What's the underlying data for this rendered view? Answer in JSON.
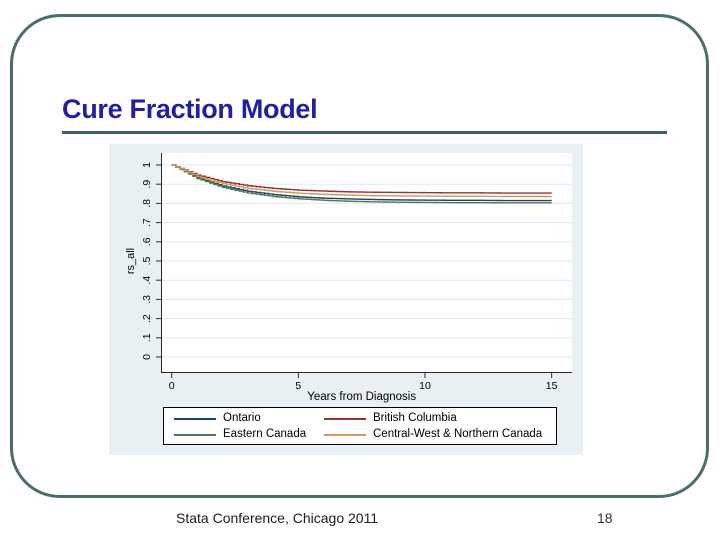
{
  "slide": {
    "title": "Cure Fraction Model",
    "footer": "Stata Conference, Chicago 2011",
    "page_number": "18"
  },
  "theme": {
    "slide_border_color": "#4b6f67",
    "title_color": "#21219f",
    "underline_color": "#3f6161",
    "chart_background": "#e9f0f4",
    "plot_background": "#ffffff",
    "grid_color": "#e1eaf0",
    "axis_color": "#2a2a2a",
    "legend_border": "#000000",
    "legend_background": "#ffffff"
  },
  "chart_data": {
    "type": "line",
    "subtype": "survival-step-curves",
    "title": "",
    "xlabel": "Years from Diagnosis",
    "ylabel": "rs_all",
    "xlim": [
      0,
      15
    ],
    "ylim": [
      0,
      1
    ],
    "xticks": [
      0,
      5,
      10,
      15
    ],
    "xtick_labels": [
      "0",
      "5",
      "10",
      "15"
    ],
    "yticks": [
      0,
      0.1,
      0.2,
      0.3,
      0.4,
      0.5,
      0.6,
      0.7,
      0.8,
      0.9,
      1
    ],
    "ytick_labels": [
      "0",
      ".1",
      ".2",
      ".3",
      ".4",
      ".5",
      ".6",
      ".7",
      ".8",
      ".9",
      "1"
    ],
    "ytick_rotation": -90,
    "grid": "horizontal",
    "legend_position": "bottom",
    "x": [
      0,
      1,
      2,
      3,
      4,
      5,
      6,
      7,
      8,
      9,
      10,
      11,
      12,
      13,
      14,
      15
    ],
    "series": [
      {
        "name": "Ontario",
        "color": "#1a476f",
        "values": [
          1.0,
          0.933,
          0.89,
          0.863,
          0.846,
          0.834,
          0.827,
          0.823,
          0.82,
          0.818,
          0.817,
          0.816,
          0.816,
          0.815,
          0.815,
          0.815
        ]
      },
      {
        "name": "British Columbia",
        "color": "#90353b",
        "values": [
          1.0,
          0.947,
          0.913,
          0.892,
          0.878,
          0.869,
          0.864,
          0.86,
          0.858,
          0.857,
          0.856,
          0.855,
          0.855,
          0.854,
          0.854,
          0.854
        ]
      },
      {
        "name": "Eastern Canada",
        "color": "#567a4f",
        "values": [
          1.0,
          0.929,
          0.883,
          0.854,
          0.836,
          0.824,
          0.816,
          0.811,
          0.808,
          0.806,
          0.805,
          0.804,
          0.804,
          0.803,
          0.803,
          0.803
        ]
      },
      {
        "name": "Central-West & Northern Canada",
        "color": "#d2995c",
        "values": [
          1.0,
          0.941,
          0.903,
          0.878,
          0.863,
          0.853,
          0.847,
          0.843,
          0.84,
          0.839,
          0.838,
          0.837,
          0.837,
          0.836,
          0.836,
          0.836
        ]
      }
    ],
    "legend_order": [
      0,
      1,
      2,
      3
    ]
  }
}
